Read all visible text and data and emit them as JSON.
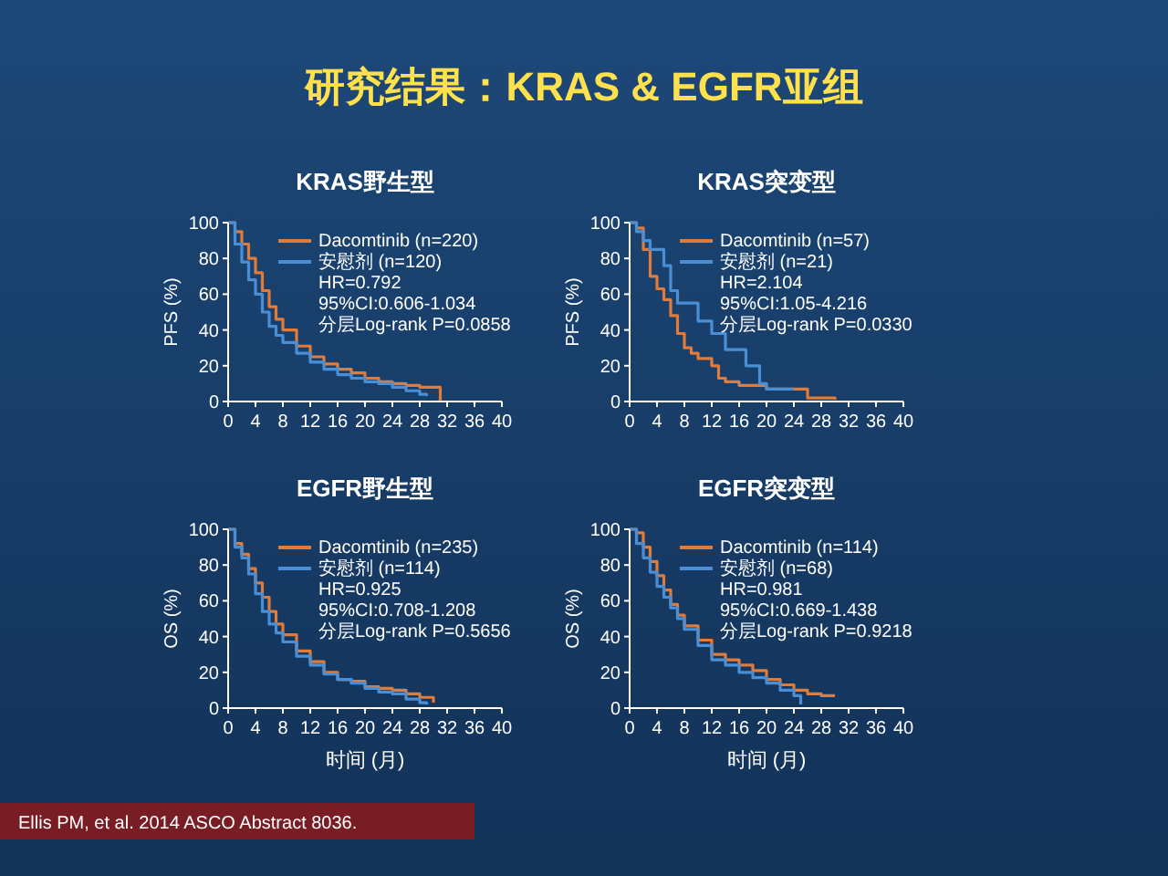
{
  "chart_data": [
    {
      "type": "other",
      "title": "研究结果：KRAS & EGFR亚组",
      "annotations": [
        "Ellis PM, et al. 2014 ASCO Abstract 8036."
      ]
    },
    {
      "type": "step",
      "title": "KRAS野生型",
      "ylabel": "PFS (%)",
      "xlim": [
        0,
        40
      ],
      "ylim": [
        0,
        100
      ],
      "xticks": [
        0,
        4,
        8,
        12,
        16,
        20,
        24,
        28,
        32,
        36,
        40
      ],
      "yticks": [
        0,
        20,
        40,
        60,
        80,
        100
      ],
      "legend": "top right",
      "annotations": [
        "HR=0.792",
        "95%CI:0.606-1.034",
        "分层Log-rank P=0.0858"
      ],
      "series": [
        {
          "name": "Dacomtinib (n=220)",
          "color": "#e07b39",
          "x": [
            0,
            1,
            2,
            3,
            4,
            5,
            6,
            7,
            8,
            10,
            12,
            14,
            16,
            18,
            20,
            22,
            24,
            26,
            28,
            31
          ],
          "values": [
            100,
            95,
            88,
            80,
            72,
            62,
            53,
            46,
            40,
            31,
            25,
            21,
            18,
            16,
            13,
            11,
            10,
            9,
            8,
            0
          ]
        },
        {
          "name": "安慰剂 (n=120)",
          "color": "#4a8fd6",
          "x": [
            0,
            1,
            2,
            3,
            4,
            5,
            6,
            7,
            8,
            10,
            12,
            14,
            16,
            18,
            20,
            22,
            24,
            26,
            28,
            29
          ],
          "values": [
            100,
            88,
            78,
            68,
            60,
            50,
            42,
            37,
            33,
            27,
            22,
            18,
            15,
            13,
            11,
            10,
            8,
            6,
            4,
            3
          ]
        }
      ]
    },
    {
      "type": "step",
      "title": "KRAS突变型",
      "ylabel": "PFS (%)",
      "xlim": [
        0,
        40
      ],
      "ylim": [
        0,
        100
      ],
      "xticks": [
        0,
        4,
        8,
        12,
        16,
        20,
        24,
        28,
        32,
        36,
        40
      ],
      "yticks": [
        0,
        20,
        40,
        60,
        80,
        100
      ],
      "legend": "top right",
      "annotations": [
        "HR=2.104",
        "95%CI:1.05-4.216",
        "分层Log-rank P=0.0330"
      ],
      "series": [
        {
          "name": "Dacomtinib (n=57)",
          "color": "#e07b39",
          "x": [
            0,
            1,
            2,
            3,
            4,
            5,
            6,
            7,
            8,
            9,
            10,
            12,
            13,
            14,
            16,
            20,
            26,
            30
          ],
          "values": [
            100,
            97,
            85,
            70,
            63,
            57,
            48,
            38,
            30,
            27,
            24,
            20,
            13,
            11,
            9,
            7,
            2,
            1
          ]
        },
        {
          "name": "安慰剂 (n=21)",
          "color": "#4a8fd6",
          "x": [
            0,
            1,
            2,
            3,
            5,
            6,
            7,
            10,
            12,
            14,
            17,
            19,
            20,
            24
          ],
          "values": [
            100,
            95,
            90,
            85,
            76,
            62,
            55,
            45,
            38,
            29,
            20,
            10,
            7,
            7
          ]
        }
      ]
    },
    {
      "type": "step",
      "title": "EGFR野生型",
      "ylabel": "OS (%)",
      "xlabel": "时间 (月)",
      "xlim": [
        0,
        40
      ],
      "ylim": [
        0,
        100
      ],
      "xticks": [
        0,
        4,
        8,
        12,
        16,
        20,
        24,
        28,
        32,
        36,
        40
      ],
      "yticks": [
        0,
        20,
        40,
        60,
        80,
        100
      ],
      "legend": "top right",
      "annotations": [
        "HR=0.925",
        "95%CI:0.708-1.208",
        "分层Log-rank P=0.5656"
      ],
      "series": [
        {
          "name": "Dacomtinib (n=235)",
          "color": "#e07b39",
          "x": [
            0,
            1,
            2,
            3,
            4,
            5,
            6,
            7,
            8,
            10,
            12,
            14,
            16,
            18,
            20,
            22,
            24,
            26,
            28,
            30
          ],
          "values": [
            100,
            92,
            86,
            78,
            70,
            62,
            54,
            47,
            41,
            32,
            26,
            20,
            16,
            15,
            12,
            11,
            10,
            8,
            6,
            3
          ]
        },
        {
          "name": "安慰剂 (n=114)",
          "color": "#4a8fd6",
          "x": [
            0,
            1,
            2,
            3,
            4,
            5,
            6,
            7,
            8,
            10,
            12,
            14,
            16,
            18,
            20,
            22,
            24,
            26,
            28,
            29
          ],
          "values": [
            100,
            90,
            84,
            75,
            64,
            54,
            47,
            42,
            37,
            29,
            24,
            19,
            16,
            14,
            11,
            9,
            8,
            5,
            3,
            2
          ]
        }
      ]
    },
    {
      "type": "step",
      "title": "EGFR突变型",
      "ylabel": "OS (%)",
      "xlabel": "时间 (月)",
      "xlim": [
        0,
        40
      ],
      "ylim": [
        0,
        100
      ],
      "xticks": [
        0,
        4,
        8,
        12,
        16,
        20,
        24,
        28,
        32,
        36,
        40
      ],
      "yticks": [
        0,
        20,
        40,
        60,
        80,
        100
      ],
      "legend": "top right",
      "annotations": [
        "HR=0.981",
        "95%CI:0.669-1.438",
        "分层Log-rank P=0.9218"
      ],
      "series": [
        {
          "name": "Dacomtinib (n=114)",
          "color": "#e07b39",
          "x": [
            0,
            1,
            2,
            3,
            4,
            5,
            6,
            7,
            8,
            10,
            12,
            14,
            16,
            18,
            20,
            22,
            24,
            26,
            28,
            30
          ],
          "values": [
            100,
            98,
            90,
            82,
            74,
            66,
            58,
            52,
            46,
            38,
            30,
            27,
            24,
            21,
            16,
            13,
            10,
            8,
            7,
            7
          ]
        },
        {
          "name": "安慰剂 (n=68)",
          "color": "#4a8fd6",
          "x": [
            0,
            1,
            2,
            3,
            4,
            5,
            6,
            7,
            8,
            10,
            12,
            14,
            16,
            18,
            20,
            22,
            24,
            25
          ],
          "values": [
            100,
            92,
            84,
            76,
            68,
            62,
            56,
            50,
            44,
            35,
            27,
            24,
            20,
            17,
            14,
            10,
            7,
            2
          ]
        }
      ]
    }
  ]
}
